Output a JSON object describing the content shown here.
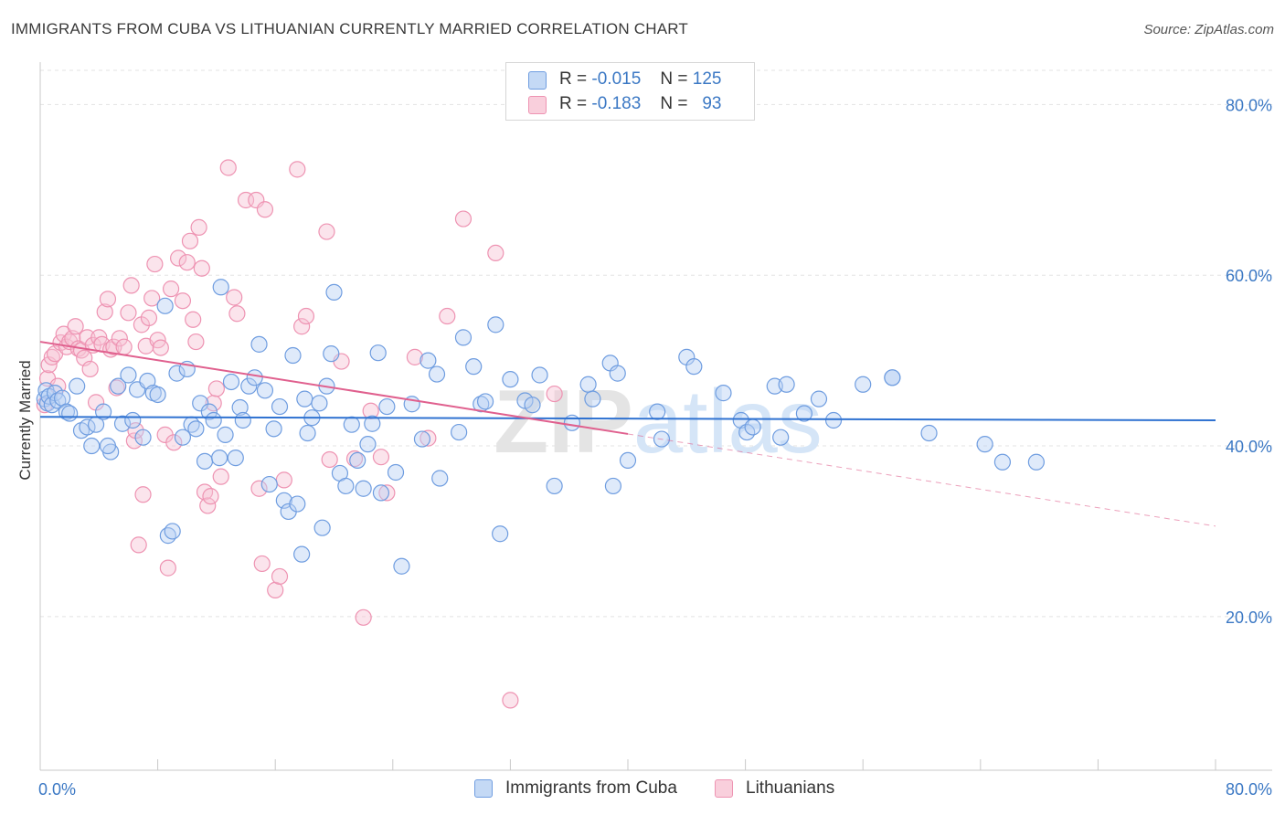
{
  "title": "IMMIGRANTS FROM CUBA VS LITHUANIAN CURRENTLY MARRIED CORRELATION CHART",
  "source": "Source: ZipAtlas.com",
  "watermark": "ZIPatlas",
  "legend_top": {
    "rows": [
      {
        "r_label": "R =",
        "r_value": "-0.015",
        "n_label": "N =",
        "n_value": "125",
        "color": "#6f9de0"
      },
      {
        "r_label": "R =",
        "r_value": "-0.183",
        "n_label": "N =",
        "n_value": "93",
        "color": "#ee93b2"
      }
    ]
  },
  "legend_bottom": {
    "items": [
      {
        "label": "Immigrants from Cuba",
        "color": "#6f9de0"
      },
      {
        "label": "Lithuanians",
        "color": "#ee93b2"
      }
    ]
  },
  "chart_data": {
    "type": "scatter",
    "title": "IMMIGRANTS FROM CUBA VS LITHUANIAN CURRENTLY MARRIED CORRELATION CHART",
    "xlabel": "",
    "ylabel": "Currently Married",
    "xlim": [
      0,
      80
    ],
    "ylim": [
      2,
      84
    ],
    "x_tick_labels": [
      "0.0%",
      "80.0%"
    ],
    "y_ticks": [
      20,
      40,
      60,
      80
    ],
    "y_tick_labels": [
      "20.0%",
      "40.0%",
      "60.0%",
      "80.0%"
    ],
    "grid": true,
    "colors": {
      "blue": "#6f9de0",
      "blue_fill": "#b8d0f3",
      "blue_line": "#2f72d1",
      "pink": "#ee93b2",
      "pink_fill": "#f7c3d4",
      "pink_line": "#e0608e"
    },
    "series": [
      {
        "name": "Immigrants from Cuba",
        "color": "#6f9de0",
        "trend": {
          "x": [
            0,
            80
          ],
          "y": [
            43.4,
            43.0
          ]
        },
        "points": [
          [
            0.3,
            45.5
          ],
          [
            0.4,
            46.5
          ],
          [
            0.5,
            45.0
          ],
          [
            0.6,
            45.8
          ],
          [
            0.8,
            44.8
          ],
          [
            1.0,
            46.2
          ],
          [
            1.2,
            45.3
          ],
          [
            1.5,
            45.6
          ],
          [
            1.8,
            44.0
          ],
          [
            2.0,
            43.8
          ],
          [
            2.5,
            47.0
          ],
          [
            2.8,
            41.8
          ],
          [
            3.2,
            42.2
          ],
          [
            3.5,
            40.0
          ],
          [
            3.8,
            42.5
          ],
          [
            4.3,
            44.0
          ],
          [
            4.8,
            39.3
          ],
          [
            4.6,
            40.0
          ],
          [
            5.3,
            47.0
          ],
          [
            5.6,
            42.6
          ],
          [
            6.0,
            48.3
          ],
          [
            6.3,
            43.0
          ],
          [
            6.6,
            46.6
          ],
          [
            7.0,
            41.0
          ],
          [
            7.3,
            47.6
          ],
          [
            7.7,
            46.2
          ],
          [
            8.0,
            46.0
          ],
          [
            8.5,
            56.4
          ],
          [
            8.7,
            29.5
          ],
          [
            9.0,
            30.0
          ],
          [
            9.3,
            48.5
          ],
          [
            9.7,
            41.0
          ],
          [
            10.0,
            49.0
          ],
          [
            10.3,
            42.5
          ],
          [
            10.6,
            42.0
          ],
          [
            10.9,
            45.0
          ],
          [
            11.2,
            38.2
          ],
          [
            11.5,
            44.0
          ],
          [
            11.8,
            43.0
          ],
          [
            12.2,
            38.6
          ],
          [
            12.3,
            58.6
          ],
          [
            12.6,
            41.3
          ],
          [
            13.0,
            47.5
          ],
          [
            13.3,
            38.6
          ],
          [
            13.6,
            44.5
          ],
          [
            13.8,
            43.0
          ],
          [
            14.2,
            47.0
          ],
          [
            14.6,
            48.0
          ],
          [
            14.9,
            51.9
          ],
          [
            15.3,
            46.5
          ],
          [
            15.6,
            35.5
          ],
          [
            15.9,
            42.0
          ],
          [
            16.3,
            44.6
          ],
          [
            16.6,
            33.6
          ],
          [
            16.9,
            32.3
          ],
          [
            17.2,
            50.6
          ],
          [
            17.5,
            33.2
          ],
          [
            17.8,
            27.3
          ],
          [
            18.0,
            45.5
          ],
          [
            18.2,
            41.5
          ],
          [
            18.5,
            43.3
          ],
          [
            19.0,
            45.0
          ],
          [
            19.2,
            30.4
          ],
          [
            19.5,
            47.0
          ],
          [
            19.8,
            50.8
          ],
          [
            20.0,
            58.0
          ],
          [
            20.4,
            36.8
          ],
          [
            20.8,
            35.3
          ],
          [
            21.2,
            42.5
          ],
          [
            21.6,
            38.3
          ],
          [
            22.0,
            35.0
          ],
          [
            22.3,
            40.2
          ],
          [
            22.6,
            42.6
          ],
          [
            23.0,
            50.9
          ],
          [
            23.2,
            34.5
          ],
          [
            23.6,
            44.6
          ],
          [
            24.2,
            36.9
          ],
          [
            24.6,
            25.9
          ],
          [
            25.3,
            44.9
          ],
          [
            26.0,
            40.8
          ],
          [
            26.4,
            50.0
          ],
          [
            27.0,
            48.4
          ],
          [
            27.2,
            36.2
          ],
          [
            28.5,
            41.6
          ],
          [
            28.8,
            52.7
          ],
          [
            29.5,
            49.3
          ],
          [
            30.0,
            44.9
          ],
          [
            30.3,
            45.2
          ],
          [
            31.0,
            54.2
          ],
          [
            31.3,
            29.7
          ],
          [
            32.0,
            47.8
          ],
          [
            33.0,
            45.3
          ],
          [
            33.5,
            44.8
          ],
          [
            34.0,
            48.3
          ],
          [
            35.0,
            35.3
          ],
          [
            36.2,
            42.7
          ],
          [
            37.3,
            47.2
          ],
          [
            37.6,
            45.5
          ],
          [
            38.8,
            49.7
          ],
          [
            39.0,
            35.3
          ],
          [
            39.3,
            48.5
          ],
          [
            40.0,
            38.3
          ],
          [
            42.0,
            44.0
          ],
          [
            42.3,
            40.8
          ],
          [
            44.0,
            50.4
          ],
          [
            44.5,
            49.3
          ],
          [
            46.5,
            46.2
          ],
          [
            47.7,
            43.0
          ],
          [
            48.1,
            41.6
          ],
          [
            48.5,
            42.2
          ],
          [
            50.0,
            47.0
          ],
          [
            50.4,
            41.0
          ],
          [
            50.8,
            47.2
          ],
          [
            52.0,
            43.8
          ],
          [
            53.0,
            45.5
          ],
          [
            54.0,
            43.0
          ],
          [
            56.0,
            47.2
          ],
          [
            58.0,
            48.0
          ],
          [
            60.5,
            41.5
          ],
          [
            64.3,
            40.2
          ],
          [
            65.5,
            38.1
          ],
          [
            67.8,
            38.1
          ],
          [
            58.0,
            48.0
          ]
        ]
      },
      {
        "name": "Lithuanians",
        "color": "#ee93b2",
        "trend_solid": {
          "x": [
            0,
            40
          ],
          "y": [
            52.2,
            41.4
          ]
        },
        "trend_dashed": {
          "x": [
            40,
            80
          ],
          "y": [
            41.4,
            30.6
          ]
        },
        "points": [
          [
            0.3,
            44.8
          ],
          [
            0.5,
            47.9
          ],
          [
            0.6,
            49.5
          ],
          [
            0.8,
            50.4
          ],
          [
            1.0,
            50.8
          ],
          [
            1.2,
            47.0
          ],
          [
            1.4,
            52.1
          ],
          [
            1.6,
            53.1
          ],
          [
            1.8,
            51.6
          ],
          [
            2.0,
            52.2
          ],
          [
            2.2,
            52.6
          ],
          [
            2.4,
            54.0
          ],
          [
            2.6,
            51.4
          ],
          [
            2.8,
            51.2
          ],
          [
            3.0,
            50.3
          ],
          [
            3.2,
            52.7
          ],
          [
            3.4,
            49.0
          ],
          [
            3.6,
            51.8
          ],
          [
            3.8,
            45.1
          ],
          [
            4.0,
            52.7
          ],
          [
            4.2,
            51.9
          ],
          [
            4.4,
            55.7
          ],
          [
            4.6,
            57.2
          ],
          [
            4.8,
            51.3
          ],
          [
            5.0,
            51.6
          ],
          [
            5.2,
            46.8
          ],
          [
            5.4,
            52.6
          ],
          [
            5.7,
            51.6
          ],
          [
            6.0,
            55.6
          ],
          [
            6.2,
            58.8
          ],
          [
            6.4,
            40.6
          ],
          [
            6.5,
            41.8
          ],
          [
            6.7,
            28.4
          ],
          [
            6.9,
            54.2
          ],
          [
            7.0,
            34.3
          ],
          [
            7.2,
            51.7
          ],
          [
            7.4,
            55.0
          ],
          [
            7.6,
            57.3
          ],
          [
            7.8,
            61.3
          ],
          [
            8.0,
            52.4
          ],
          [
            8.2,
            51.5
          ],
          [
            8.5,
            41.3
          ],
          [
            8.7,
            25.7
          ],
          [
            8.9,
            58.4
          ],
          [
            9.1,
            40.4
          ],
          [
            9.4,
            62.0
          ],
          [
            9.7,
            57.0
          ],
          [
            10.0,
            61.5
          ],
          [
            10.2,
            64.0
          ],
          [
            10.4,
            54.8
          ],
          [
            10.6,
            52.2
          ],
          [
            10.8,
            65.6
          ],
          [
            11.0,
            60.8
          ],
          [
            11.2,
            34.6
          ],
          [
            11.4,
            33.0
          ],
          [
            11.6,
            34.1
          ],
          [
            11.8,
            45.0
          ],
          [
            12.0,
            46.7
          ],
          [
            12.3,
            36.4
          ],
          [
            12.8,
            72.6
          ],
          [
            13.2,
            57.4
          ],
          [
            13.4,
            55.5
          ],
          [
            14.0,
            68.8
          ],
          [
            14.7,
            68.8
          ],
          [
            14.9,
            35.0
          ],
          [
            15.1,
            26.2
          ],
          [
            15.3,
            67.7
          ],
          [
            16.0,
            23.1
          ],
          [
            16.3,
            24.7
          ],
          [
            16.6,
            36.0
          ],
          [
            17.5,
            72.4
          ],
          [
            17.8,
            54.0
          ],
          [
            18.1,
            55.2
          ],
          [
            19.5,
            65.1
          ],
          [
            19.7,
            38.4
          ],
          [
            20.5,
            49.9
          ],
          [
            21.4,
            38.5
          ],
          [
            22.0,
            19.9
          ],
          [
            22.5,
            44.1
          ],
          [
            23.2,
            38.7
          ],
          [
            23.6,
            34.5
          ],
          [
            25.5,
            50.4
          ],
          [
            26.4,
            40.9
          ],
          [
            27.7,
            55.2
          ],
          [
            28.8,
            66.6
          ],
          [
            31.0,
            62.6
          ],
          [
            32.0,
            10.2
          ],
          [
            35.0,
            46.1
          ]
        ]
      }
    ]
  }
}
